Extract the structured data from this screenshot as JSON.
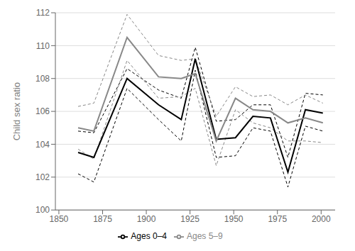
{
  "chart_data": {
    "type": "line",
    "ylabel": "Child sex ratio",
    "x": [
      1861,
      1870,
      1889,
      1907,
      1920,
      1928,
      1940,
      1951,
      1961,
      1971,
      1981,
      1991,
      2001
    ],
    "series": [
      {
        "name": "Ages 0–4",
        "color": "#000000",
        "values": [
          103.5,
          103.2,
          108.0,
          106.4,
          105.5,
          109.2,
          104.3,
          104.4,
          105.7,
          105.6,
          102.3,
          106.1,
          105.9
        ],
        "upper": [
          104.8,
          104.7,
          108.6,
          107.3,
          106.8,
          109.9,
          105.4,
          105.5,
          106.4,
          106.4,
          103.2,
          107.1,
          107.0
        ],
        "lower": [
          102.2,
          101.7,
          107.4,
          105.5,
          104.2,
          108.5,
          103.2,
          103.3,
          105.0,
          104.8,
          101.4,
          105.1,
          104.8
        ]
      },
      {
        "name": "Ages 5–9",
        "color": "#888888",
        "values": [
          105.0,
          104.8,
          110.5,
          108.1,
          108.0,
          108.3,
          104.2,
          106.8,
          106.1,
          106.0,
          105.3,
          105.6,
          105.3
        ],
        "upper": [
          106.3,
          106.5,
          111.9,
          109.4,
          109.1,
          109.2,
          105.7,
          107.5,
          106.9,
          107.0,
          106.4,
          107.0,
          106.5
        ],
        "lower": [
          103.7,
          103.1,
          109.1,
          106.8,
          106.9,
          107.4,
          102.7,
          106.1,
          105.3,
          105.0,
          104.2,
          104.2,
          104.1
        ]
      }
    ],
    "xlim": [
      1848,
      2008
    ],
    "xticks": [
      1850,
      1875,
      1900,
      1925,
      1950,
      1975,
      2000
    ],
    "ylim": [
      100,
      112
    ],
    "yticks": [
      100,
      102,
      104,
      106,
      108,
      110,
      112
    ],
    "grid": true,
    "legend": "bottom"
  }
}
